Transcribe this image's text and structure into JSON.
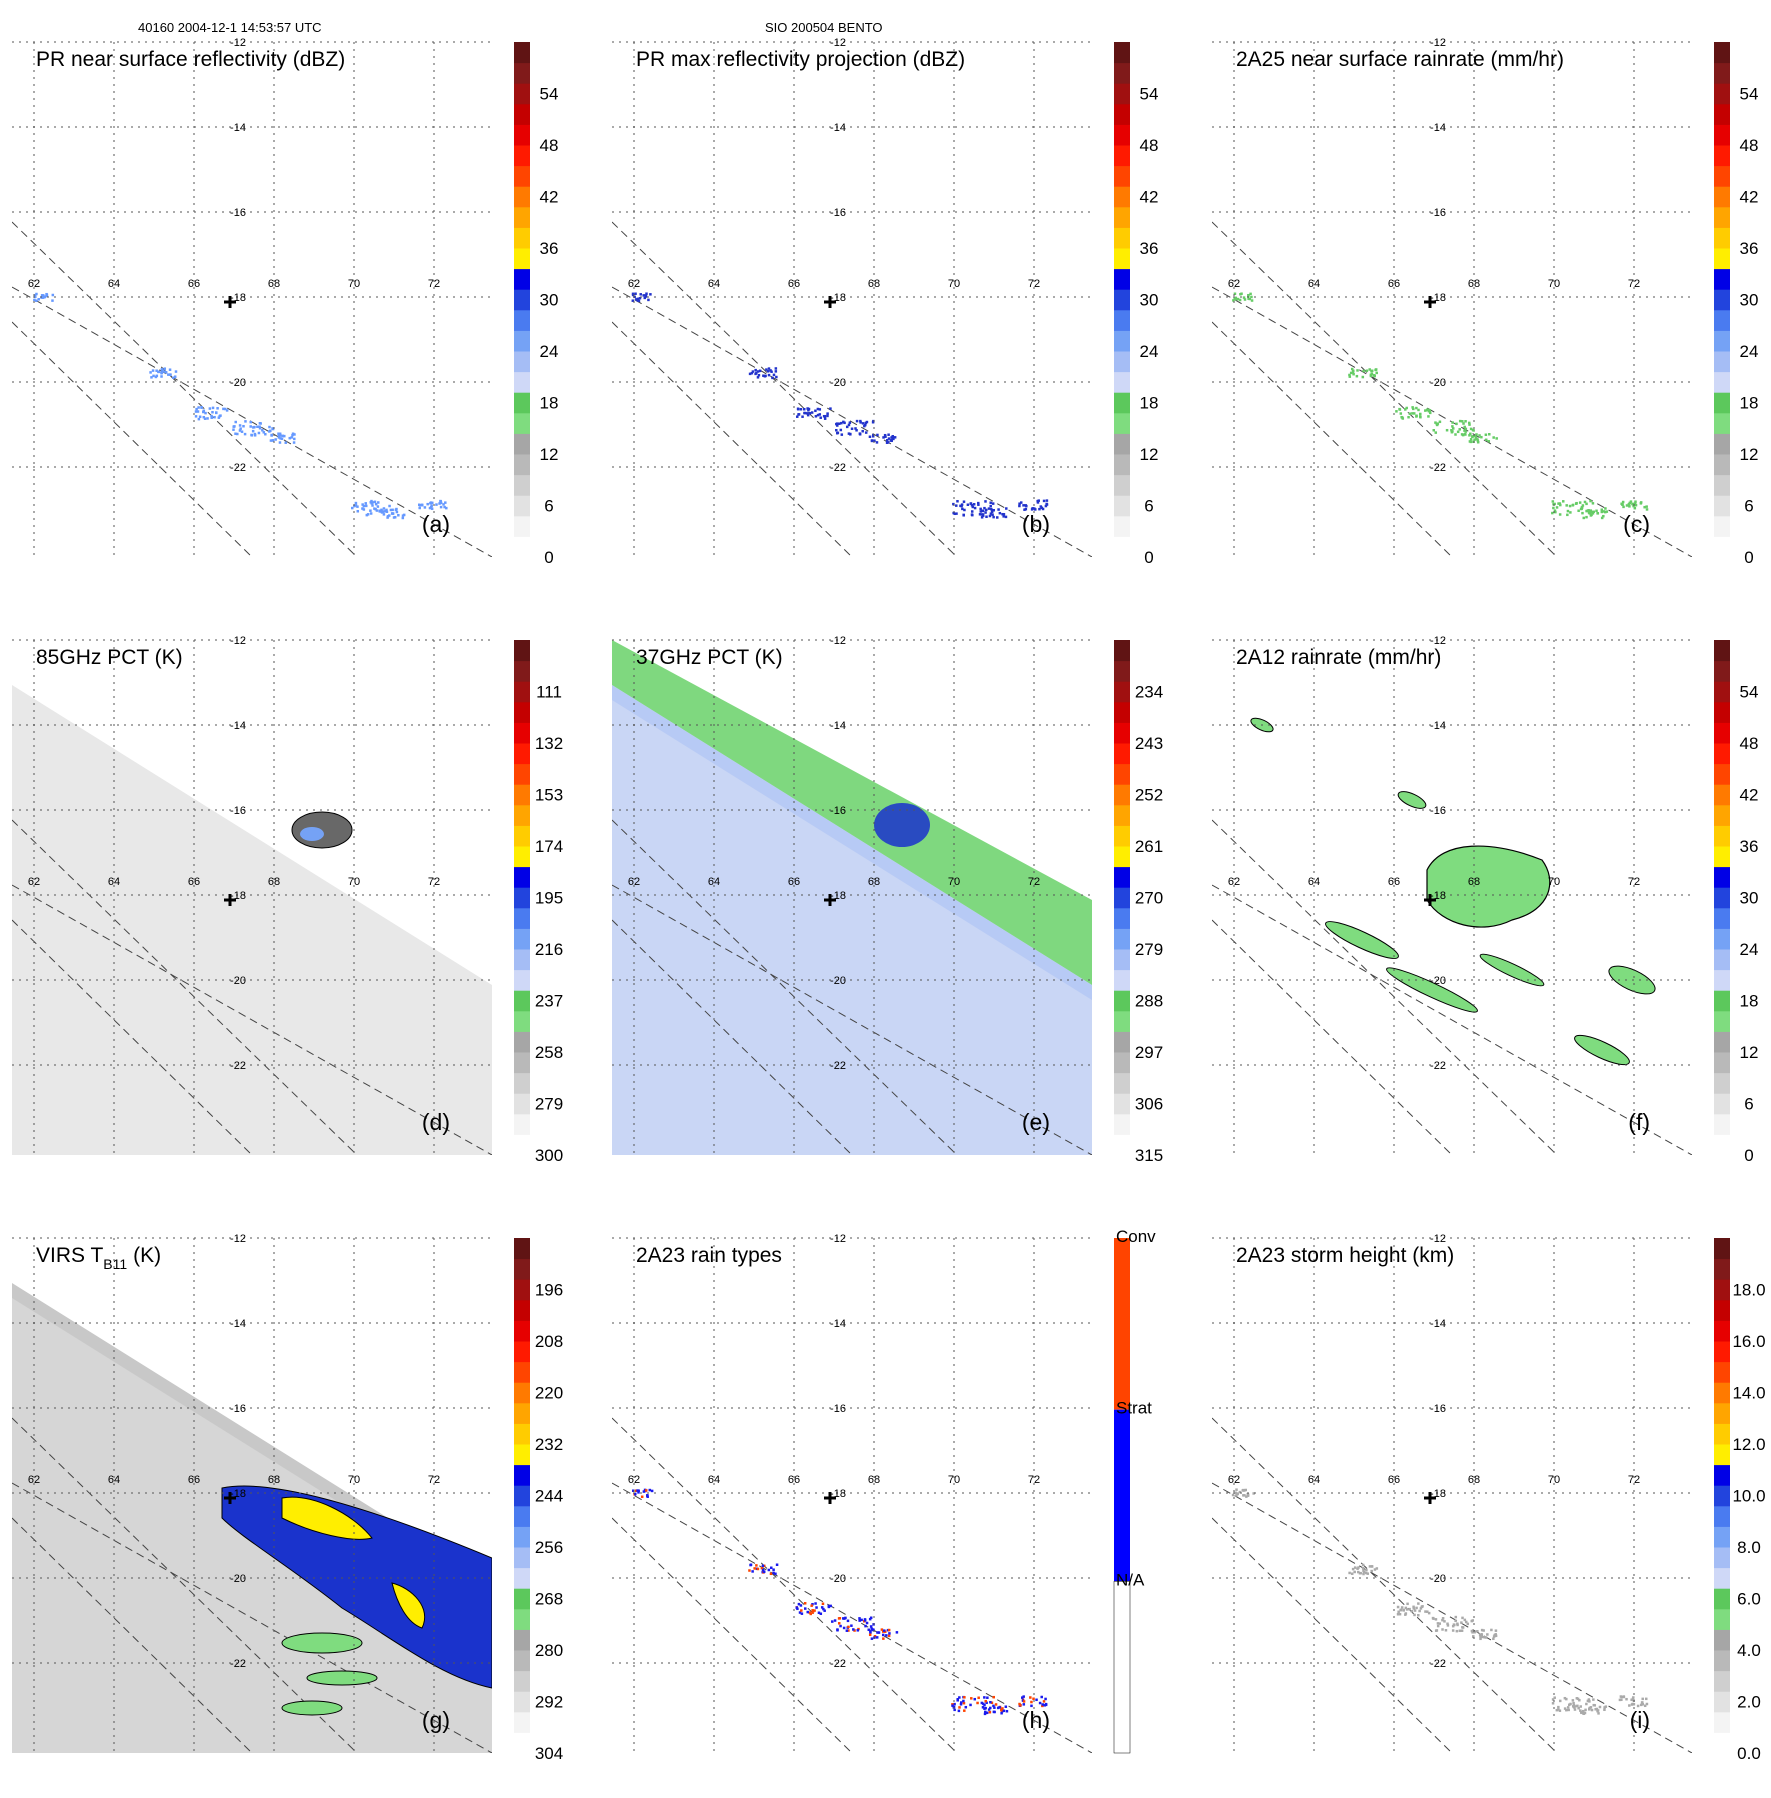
{
  "header": {
    "left": "40160 2004-12-1 14:53:57 UTC",
    "center": "SIO 200504 BENTO"
  },
  "chart_data": [
    {
      "id": "a",
      "type": "heatmap",
      "title": "PR near surface reflectivity (dBZ)",
      "panel_label": "(a)",
      "lon_ticks": [
        "62",
        "64",
        "66",
        "68",
        "70",
        "72"
      ],
      "lat_ticks": [
        "-12",
        "-14",
        "-16",
        "-18",
        "-20",
        "-22"
      ],
      "colorbar": {
        "ticks": [
          "0",
          "6",
          "12",
          "18",
          "24",
          "30",
          "36",
          "42",
          "48",
          "54"
        ],
        "range": [
          0,
          60
        ]
      },
      "background": "none",
      "rain_color": "#6699ff",
      "contours": false
    },
    {
      "id": "b",
      "type": "heatmap",
      "title": "PR max reflectivity projection (dBZ)",
      "panel_label": "(b)",
      "lon_ticks": [
        "62",
        "64",
        "66",
        "68",
        "70",
        "72"
      ],
      "lat_ticks": [
        "-12",
        "-14",
        "-16",
        "-18",
        "-20",
        "-22"
      ],
      "colorbar": {
        "ticks": [
          "0",
          "6",
          "12",
          "18",
          "24",
          "30",
          "36",
          "42",
          "48",
          "54"
        ],
        "range": [
          0,
          60
        ]
      },
      "background": "none",
      "rain_color": "#2233cc",
      "contours": true
    },
    {
      "id": "c",
      "type": "heatmap",
      "title": "2A25 near surface rainrate (mm/hr)",
      "panel_label": "(c)",
      "lon_ticks": [
        "62",
        "64",
        "66",
        "68",
        "70",
        "72"
      ],
      "lat_ticks": [
        "-12",
        "-14",
        "-16",
        "-18",
        "-20",
        "-22"
      ],
      "colorbar": {
        "ticks": [
          "0",
          "6",
          "12",
          "18",
          "24",
          "30",
          "36",
          "42",
          "48",
          "54"
        ],
        "range": [
          0,
          60
        ]
      },
      "background": "none",
      "rain_color": "#66cc66",
      "contours": true
    },
    {
      "id": "d",
      "type": "heatmap",
      "title": "85GHz PCT (K)",
      "panel_label": "(d)",
      "lon_ticks": [
        "62",
        "64",
        "66",
        "68",
        "70",
        "72"
      ],
      "lat_ticks": [
        "-12",
        "-14",
        "-16",
        "-18",
        "-20",
        "-22"
      ],
      "colorbar": {
        "ticks": [
          "300",
          "279",
          "258",
          "237",
          "216",
          "195",
          "174",
          "153",
          "132",
          "111"
        ],
        "range": [
          300,
          90
        ]
      },
      "background": "swath",
      "swath_color": "#e8e8e8",
      "rain_color": "#4d4d4d",
      "contours": true
    },
    {
      "id": "e",
      "type": "heatmap",
      "title": "37GHz PCT (K)",
      "panel_label": "(e)",
      "lon_ticks": [
        "62",
        "64",
        "66",
        "68",
        "70",
        "72"
      ],
      "lat_ticks": [
        "-12",
        "-14",
        "-16",
        "-18",
        "-20",
        "-22"
      ],
      "colorbar": {
        "ticks": [
          "315",
          "306",
          "297",
          "288",
          "279",
          "270",
          "261",
          "252",
          "243",
          "234"
        ],
        "range": [
          315,
          225
        ]
      },
      "background": "swath",
      "swath_color": "#c9d6f5",
      "rain_color": "#1a33cc",
      "contours": false
    },
    {
      "id": "f",
      "type": "heatmap",
      "title": "2A12 rainrate (mm/hr)",
      "panel_label": "(f)",
      "lon_ticks": [
        "62",
        "64",
        "66",
        "68",
        "70",
        "72"
      ],
      "lat_ticks": [
        "-12",
        "-14",
        "-16",
        "-18",
        "-20",
        "-22"
      ],
      "colorbar": {
        "ticks": [
          "0",
          "6",
          "12",
          "18",
          "24",
          "30",
          "36",
          "42",
          "48",
          "54"
        ],
        "range": [
          0,
          60
        ]
      },
      "background": "none",
      "rain_color": "#66cc66",
      "contours": true
    },
    {
      "id": "g",
      "type": "heatmap",
      "title_main": "VIRS T",
      "title_sub": "B11",
      "title_unit": "(K)",
      "panel_label": "(g)",
      "lon_ticks": [
        "62",
        "64",
        "66",
        "68",
        "70",
        "72"
      ],
      "lat_ticks": [
        "-12",
        "-14",
        "-16",
        "-18",
        "-20",
        "-22"
      ],
      "colorbar": {
        "ticks": [
          "304",
          "292",
          "280",
          "268",
          "256",
          "244",
          "232",
          "220",
          "208",
          "196"
        ],
        "range": [
          304,
          184
        ]
      },
      "background": "swath",
      "swath_color": "#c8c8c8",
      "rain_color": "#1a33cc",
      "contours": true
    },
    {
      "id": "h",
      "type": "heatmap",
      "title": "2A23 rain types",
      "panel_label": "(h)",
      "lon_ticks": [
        "62",
        "64",
        "66",
        "68",
        "70",
        "72"
      ],
      "lat_ticks": [
        "-12",
        "-14",
        "-16",
        "-18",
        "-20",
        "-22"
      ],
      "categories": [
        "N/A",
        "Strat",
        "Conv"
      ],
      "category_colors": [
        "#ffffff",
        "#0000ff",
        "#ff4400"
      ],
      "background": "none",
      "rain_color": "#1a1aee",
      "contours": false
    },
    {
      "id": "i",
      "type": "heatmap",
      "title": "2A23 storm height (km)",
      "panel_label": "(i)",
      "lon_ticks": [
        "62",
        "64",
        "66",
        "68",
        "70",
        "72"
      ],
      "lat_ticks": [
        "-12",
        "-14",
        "-16",
        "-18",
        "-20",
        "-22"
      ],
      "colorbar": {
        "ticks": [
          "0.0",
          "2.0",
          "4.0",
          "6.0",
          "8.0",
          "10.0",
          "12.0",
          "14.0",
          "16.0",
          "18.0"
        ],
        "range": [
          0,
          20
        ]
      },
      "background": "none",
      "rain_color": "#aaaaaa",
      "contours": false
    }
  ],
  "colormap_rainbow": [
    "#ffffff",
    "#f4f4f4",
    "#e2e2e2",
    "#cfcfcf",
    "#b9b9b9",
    "#a6a6a6",
    "#7fdc7f",
    "#5cc85c",
    "#cfd8f7",
    "#a5bdf5",
    "#75a2f5",
    "#4a7bf0",
    "#2244dd",
    "#0000e6",
    "#ffee00",
    "#ffcc00",
    "#ffa500",
    "#ff7a00",
    "#ff4500",
    "#ff1a00",
    "#e60000",
    "#c40000",
    "#a01010",
    "#801a1a",
    "#601414"
  ]
}
